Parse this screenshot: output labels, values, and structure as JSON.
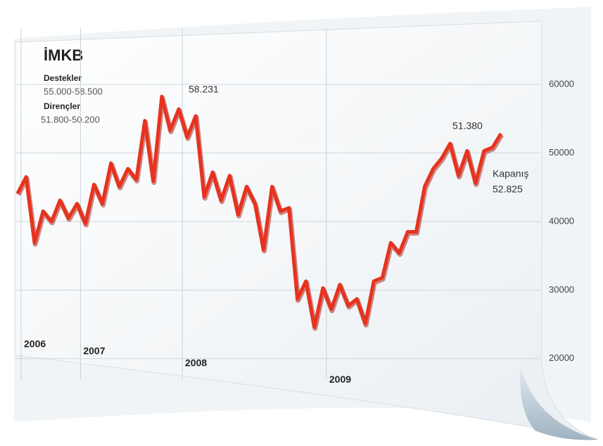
{
  "chart_data": {
    "type": "line",
    "title": "İMKB",
    "subtitle_items": [
      {
        "label": "Destekler",
        "text": "55.000-58.500"
      },
      {
        "label": "Dirençler",
        "text": "51.800-50.200"
      }
    ],
    "categories": [
      "2006",
      null,
      null,
      null,
      null,
      null,
      null,
      "2007",
      null,
      null,
      null,
      null,
      null,
      null,
      null,
      null,
      null,
      null,
      null,
      "2008",
      null,
      null,
      null,
      null,
      null,
      null,
      null,
      null,
      null,
      null,
      null,
      null,
      null,
      null,
      null,
      null,
      "2009",
      null,
      null,
      null,
      null,
      null,
      null,
      null,
      null,
      null,
      null,
      null,
      null,
      null,
      null,
      null,
      null,
      null,
      null,
      null,
      null,
      null
    ],
    "series": [
      {
        "color": "#e8321e",
        "values": [
          44100,
          46500,
          36900,
          41500,
          40000,
          43100,
          40500,
          42600,
          39700,
          45400,
          42600,
          48500,
          45100,
          47700,
          46100,
          54700,
          45900,
          58231,
          53300,
          56400,
          52300,
          55400,
          43600,
          47200,
          43100,
          46700,
          41000,
          45100,
          42600,
          35900,
          45100,
          41500,
          42000,
          28700,
          31300,
          24600,
          30300,
          27200,
          30800,
          27700,
          28700,
          25100,
          31300,
          31800,
          36900,
          35400,
          38500,
          38500,
          45100,
          47700,
          49200,
          51380,
          46700,
          50300,
          45600,
          50300,
          50800,
          52825
        ]
      }
    ],
    "annotations": [
      "58.231",
      "51.380",
      "Kapanış",
      "52.825"
    ],
    "ylim": [
      17000,
      64000
    ],
    "yticks": [
      20000,
      30000,
      40000,
      50000,
      60000
    ],
    "grid": true
  }
}
